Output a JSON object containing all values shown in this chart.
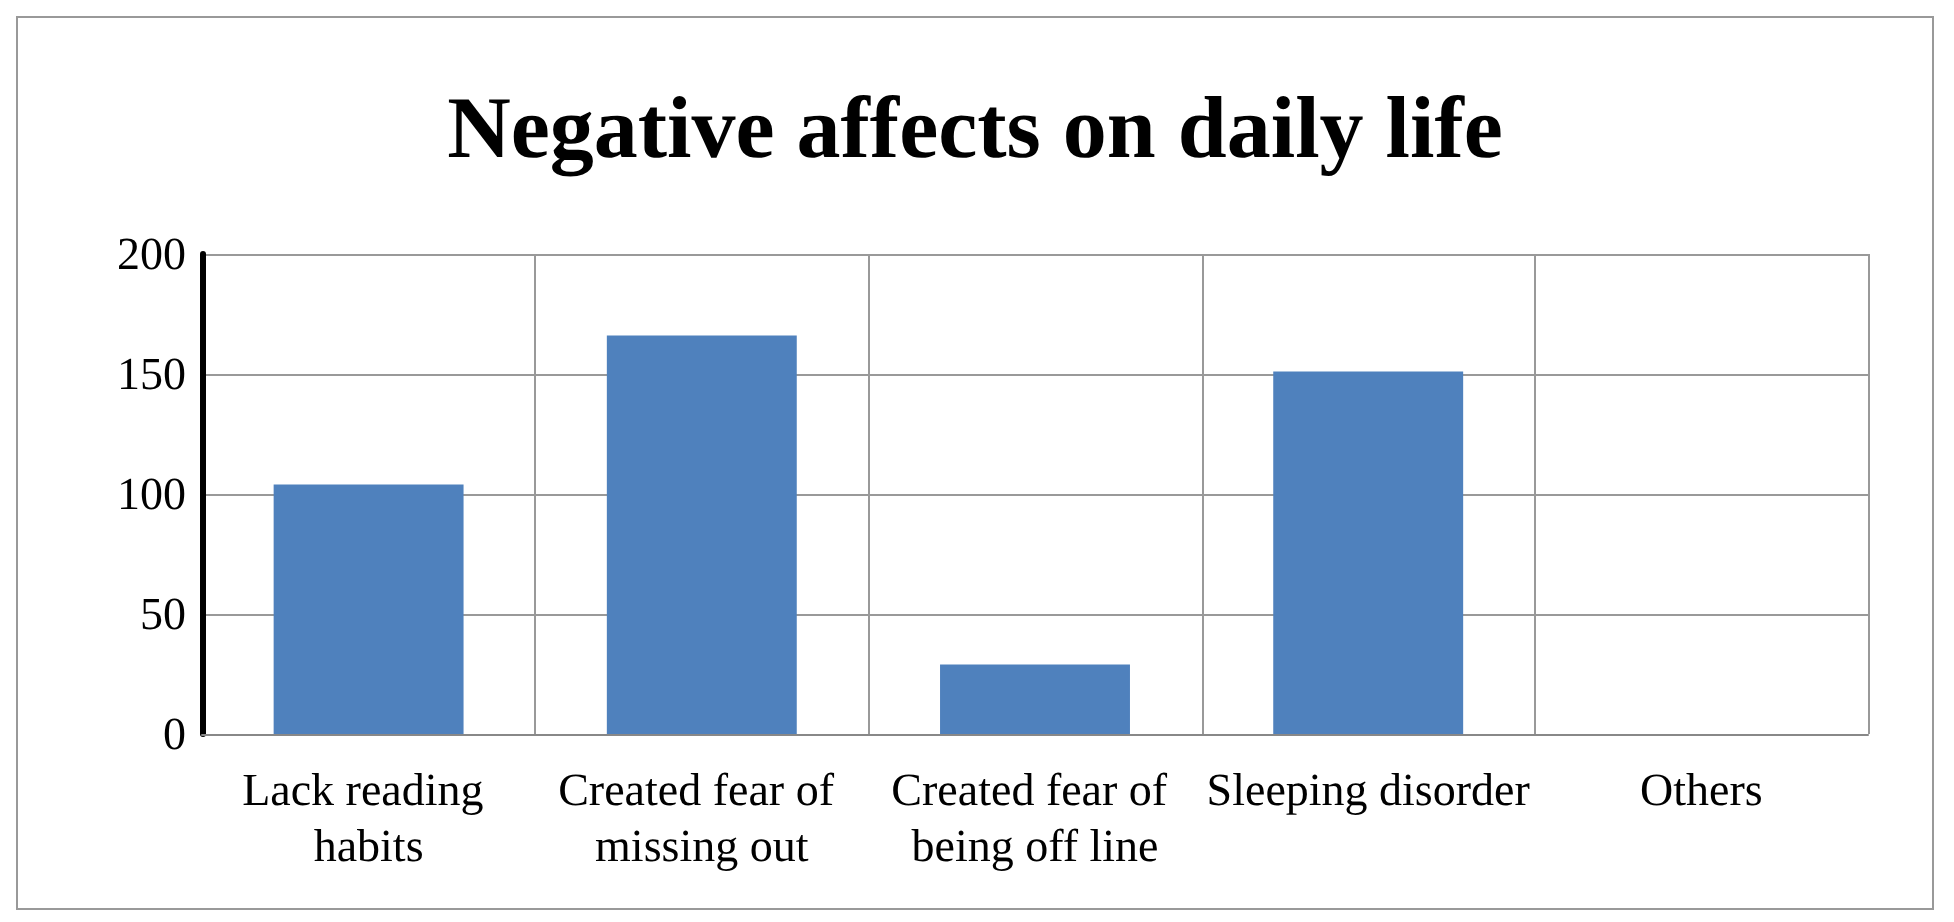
{
  "chart_data": {
    "type": "bar",
    "title": "Negative affects on daily life",
    "categories": [
      "Lack reading habits",
      "Created fear of missing out",
      "Created fear of being off line",
      "Sleeping disorder",
      "Others"
    ],
    "values": [
      104,
      166,
      29,
      151,
      0
    ],
    "color": "#4f81bd",
    "ylim": [
      0,
      200
    ],
    "yticks": [
      0,
      50,
      100,
      150,
      200
    ],
    "grid": true
  }
}
